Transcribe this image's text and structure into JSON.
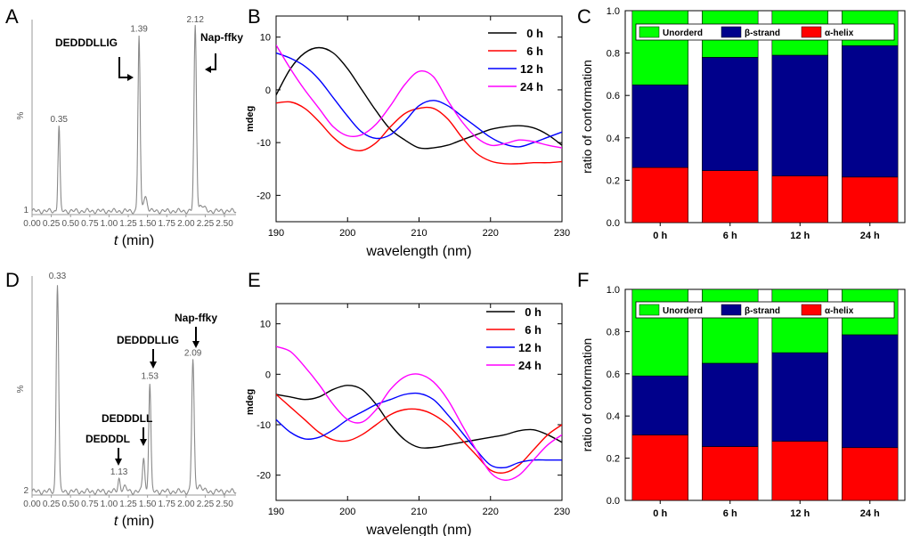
{
  "chart_data": [
    {
      "panel": "A",
      "type": "line",
      "chart": "HPLC chromatogram",
      "xlabel_italic": "t",
      "xlabel_rest": " (min)",
      "ylabel": "%",
      "y_min_label": "1",
      "xlim": [
        0,
        2.65
      ],
      "xticks": [
        "0.00",
        "0.25",
        "0.50",
        "0.75",
        "1.00",
        "1.25",
        "1.50",
        "1.75",
        "2.00",
        "2.25",
        "2.50"
      ],
      "peaks": [
        {
          "t": 0.35,
          "label": "0.35",
          "height": 0.46
        },
        {
          "t": 1.39,
          "label": "1.39",
          "height": 0.95
        },
        {
          "t": 2.12,
          "label": "2.12",
          "height": 1.0
        }
      ],
      "annotations": [
        "DEDDDLLIG",
        "Nap-ffky"
      ]
    },
    {
      "panel": "B",
      "type": "line",
      "xlabel": "wavelength (nm)",
      "ylabel": "mdeg",
      "xlim": [
        190,
        230
      ],
      "ylim": [
        -25,
        14
      ],
      "xticks": [
        190,
        200,
        210,
        220,
        230
      ],
      "yticks": [
        10,
        0,
        -10,
        -20
      ],
      "series": [
        {
          "name": "0 h",
          "color": "#000000",
          "x": [
            190,
            192,
            194,
            196,
            198,
            200,
            202,
            204,
            206,
            208,
            210,
            212,
            214,
            216,
            218,
            220,
            222,
            224,
            226,
            228,
            230
          ],
          "y": [
            -1,
            4,
            7,
            8,
            7,
            4,
            0,
            -4,
            -7.5,
            -9.5,
            -11,
            -11,
            -10.5,
            -9.5,
            -8.5,
            -7.5,
            -7,
            -6.8,
            -7.2,
            -8.5,
            -10.5
          ]
        },
        {
          "name": "6 h",
          "color": "#ff0000",
          "x": [
            190,
            192,
            194,
            196,
            198,
            200,
            202,
            204,
            206,
            208,
            210,
            212,
            214,
            216,
            218,
            220,
            222,
            224,
            226,
            228,
            230
          ],
          "y": [
            -2.5,
            -2.3,
            -3.5,
            -6,
            -9,
            -11,
            -11.5,
            -10,
            -7,
            -4.5,
            -3.5,
            -3.5,
            -5.5,
            -9,
            -12,
            -13.5,
            -14,
            -14,
            -13.8,
            -13.8,
            -13.6
          ]
        },
        {
          "name": "12 h",
          "color": "#0000ff",
          "x": [
            190,
            192,
            194,
            196,
            198,
            200,
            202,
            204,
            206,
            208,
            210,
            212,
            214,
            216,
            218,
            220,
            222,
            224,
            226,
            228,
            230
          ],
          "y": [
            7,
            6,
            4.5,
            2,
            -1.5,
            -5,
            -8,
            -9.2,
            -8.5,
            -6,
            -3,
            -2,
            -3,
            -5,
            -7,
            -9,
            -10.3,
            -10.8,
            -10,
            -9,
            -8
          ]
        },
        {
          "name": "24 h",
          "color": "#ff00ff",
          "x": [
            190,
            192,
            194,
            196,
            198,
            200,
            202,
            204,
            206,
            208,
            210,
            212,
            214,
            216,
            218,
            220,
            222,
            224,
            226,
            228,
            230
          ],
          "y": [
            8.5,
            4,
            0,
            -3.5,
            -7,
            -8.7,
            -8.5,
            -6.5,
            -3,
            1,
            3.5,
            2.5,
            -2,
            -6,
            -9,
            -10.5,
            -10.2,
            -9.5,
            -9.8,
            -10.5,
            -11
          ]
        }
      ]
    },
    {
      "panel": "C",
      "type": "bar",
      "stacked": true,
      "ylabel": "ratio of conformation",
      "ylim": [
        0,
        1.0
      ],
      "yticks": [
        "0.0",
        "0.2",
        "0.4",
        "0.6",
        "0.8",
        "1.0"
      ],
      "categories": [
        "0 h",
        "6 h",
        "12 h",
        "24 h"
      ],
      "series": [
        {
          "name": "α-helix",
          "color": "#ff0000",
          "values": [
            0.26,
            0.245,
            0.22,
            0.215
          ]
        },
        {
          "name": "β-strand",
          "color": "#00008b",
          "values": [
            0.39,
            0.535,
            0.57,
            0.62
          ]
        },
        {
          "name": "Unorderd",
          "color": "#00ff00",
          "values": [
            0.35,
            0.22,
            0.21,
            0.165
          ]
        }
      ]
    },
    {
      "panel": "D",
      "type": "line",
      "chart": "HPLC chromatogram",
      "xlabel_italic": "t",
      "xlabel_rest": " (min)",
      "ylabel": "%",
      "y_min_label": "2",
      "xlim": [
        0,
        2.65
      ],
      "xticks": [
        "0.00",
        "0.25",
        "0.50",
        "0.75",
        "1.00",
        "1.25",
        "1.50",
        "1.75",
        "2.00",
        "2.25",
        "2.50"
      ],
      "peaks": [
        {
          "t": 0.33,
          "label": "0.33",
          "height": 1.0
        },
        {
          "t": 1.13,
          "label": "1.13",
          "height": 0.06
        },
        {
          "t": 1.45,
          "label": "",
          "height": 0.17
        },
        {
          "t": 1.53,
          "label": "1.53",
          "height": 0.52
        },
        {
          "t": 2.09,
          "label": "2.09",
          "height": 0.63
        }
      ],
      "annotations": [
        "Nap-ffky",
        "DEDDDLLIG",
        "DEDDDLL",
        "DEDDDL"
      ]
    },
    {
      "panel": "E",
      "type": "line",
      "xlabel": "wavelength (nm)",
      "ylabel": "mdeg",
      "xlim": [
        190,
        230
      ],
      "ylim": [
        -25,
        14
      ],
      "xticks": [
        190,
        200,
        210,
        220,
        230
      ],
      "yticks": [
        10,
        0,
        -10,
        -20
      ],
      "series": [
        {
          "name": "0 h",
          "color": "#000000",
          "x": [
            190,
            192,
            194,
            196,
            198,
            200,
            202,
            204,
            206,
            208,
            210,
            212,
            214,
            216,
            218,
            220,
            222,
            224,
            226,
            228,
            230
          ],
          "y": [
            -4,
            -4.5,
            -5,
            -4.5,
            -3,
            -2.2,
            -3,
            -6,
            -10,
            -13,
            -14.5,
            -14.5,
            -14,
            -13.5,
            -13,
            -12.5,
            -12,
            -11.2,
            -11,
            -12,
            -13.5
          ]
        },
        {
          "name": "6 h",
          "color": "#ff0000",
          "x": [
            190,
            192,
            194,
            196,
            198,
            200,
            202,
            204,
            206,
            208,
            210,
            212,
            214,
            216,
            218,
            220,
            222,
            224,
            226,
            228,
            230
          ],
          "y": [
            -4,
            -6.5,
            -9,
            -11.5,
            -13,
            -13.2,
            -12,
            -10,
            -8,
            -7,
            -7,
            -8,
            -10,
            -13,
            -16,
            -19,
            -19.5,
            -18,
            -15,
            -12,
            -10
          ]
        },
        {
          "name": "12 h",
          "color": "#0000ff",
          "x": [
            190,
            192,
            194,
            196,
            198,
            200,
            202,
            204,
            206,
            208,
            210,
            212,
            214,
            216,
            218,
            220,
            222,
            224,
            226,
            228,
            230
          ],
          "y": [
            -9,
            -11.5,
            -12.8,
            -12.5,
            -11,
            -9,
            -7.5,
            -6,
            -5,
            -4,
            -3.8,
            -5,
            -8,
            -11.5,
            -15,
            -18,
            -18.5,
            -17.5,
            -17,
            -17,
            -17
          ]
        },
        {
          "name": "24 h",
          "color": "#ff00ff",
          "x": [
            190,
            192,
            194,
            196,
            198,
            200,
            202,
            204,
            206,
            208,
            210,
            212,
            214,
            216,
            218,
            220,
            222,
            224,
            226,
            228,
            230
          ],
          "y": [
            5.5,
            4.5,
            1.5,
            -2,
            -6,
            -9,
            -9.5,
            -7,
            -3,
            -0.5,
            0,
            -1.5,
            -5,
            -10,
            -15,
            -19.5,
            -21,
            -20,
            -17,
            -14,
            -12
          ]
        }
      ]
    },
    {
      "panel": "F",
      "type": "bar",
      "stacked": true,
      "ylabel": "ratio of conformation",
      "ylim": [
        0,
        1.0
      ],
      "yticks": [
        "0.0",
        "0.2",
        "0.4",
        "0.6",
        "0.8",
        "1.0"
      ],
      "categories": [
        "0 h",
        "6 h",
        "12 h",
        "24 h"
      ],
      "series": [
        {
          "name": "α-helix",
          "color": "#ff0000",
          "values": [
            0.31,
            0.255,
            0.28,
            0.25
          ]
        },
        {
          "name": "β-strand",
          "color": "#00008b",
          "values": [
            0.28,
            0.395,
            0.42,
            0.535
          ]
        },
        {
          "name": "Unorderd",
          "color": "#00ff00",
          "values": [
            0.41,
            0.35,
            0.3,
            0.215
          ]
        }
      ]
    }
  ]
}
